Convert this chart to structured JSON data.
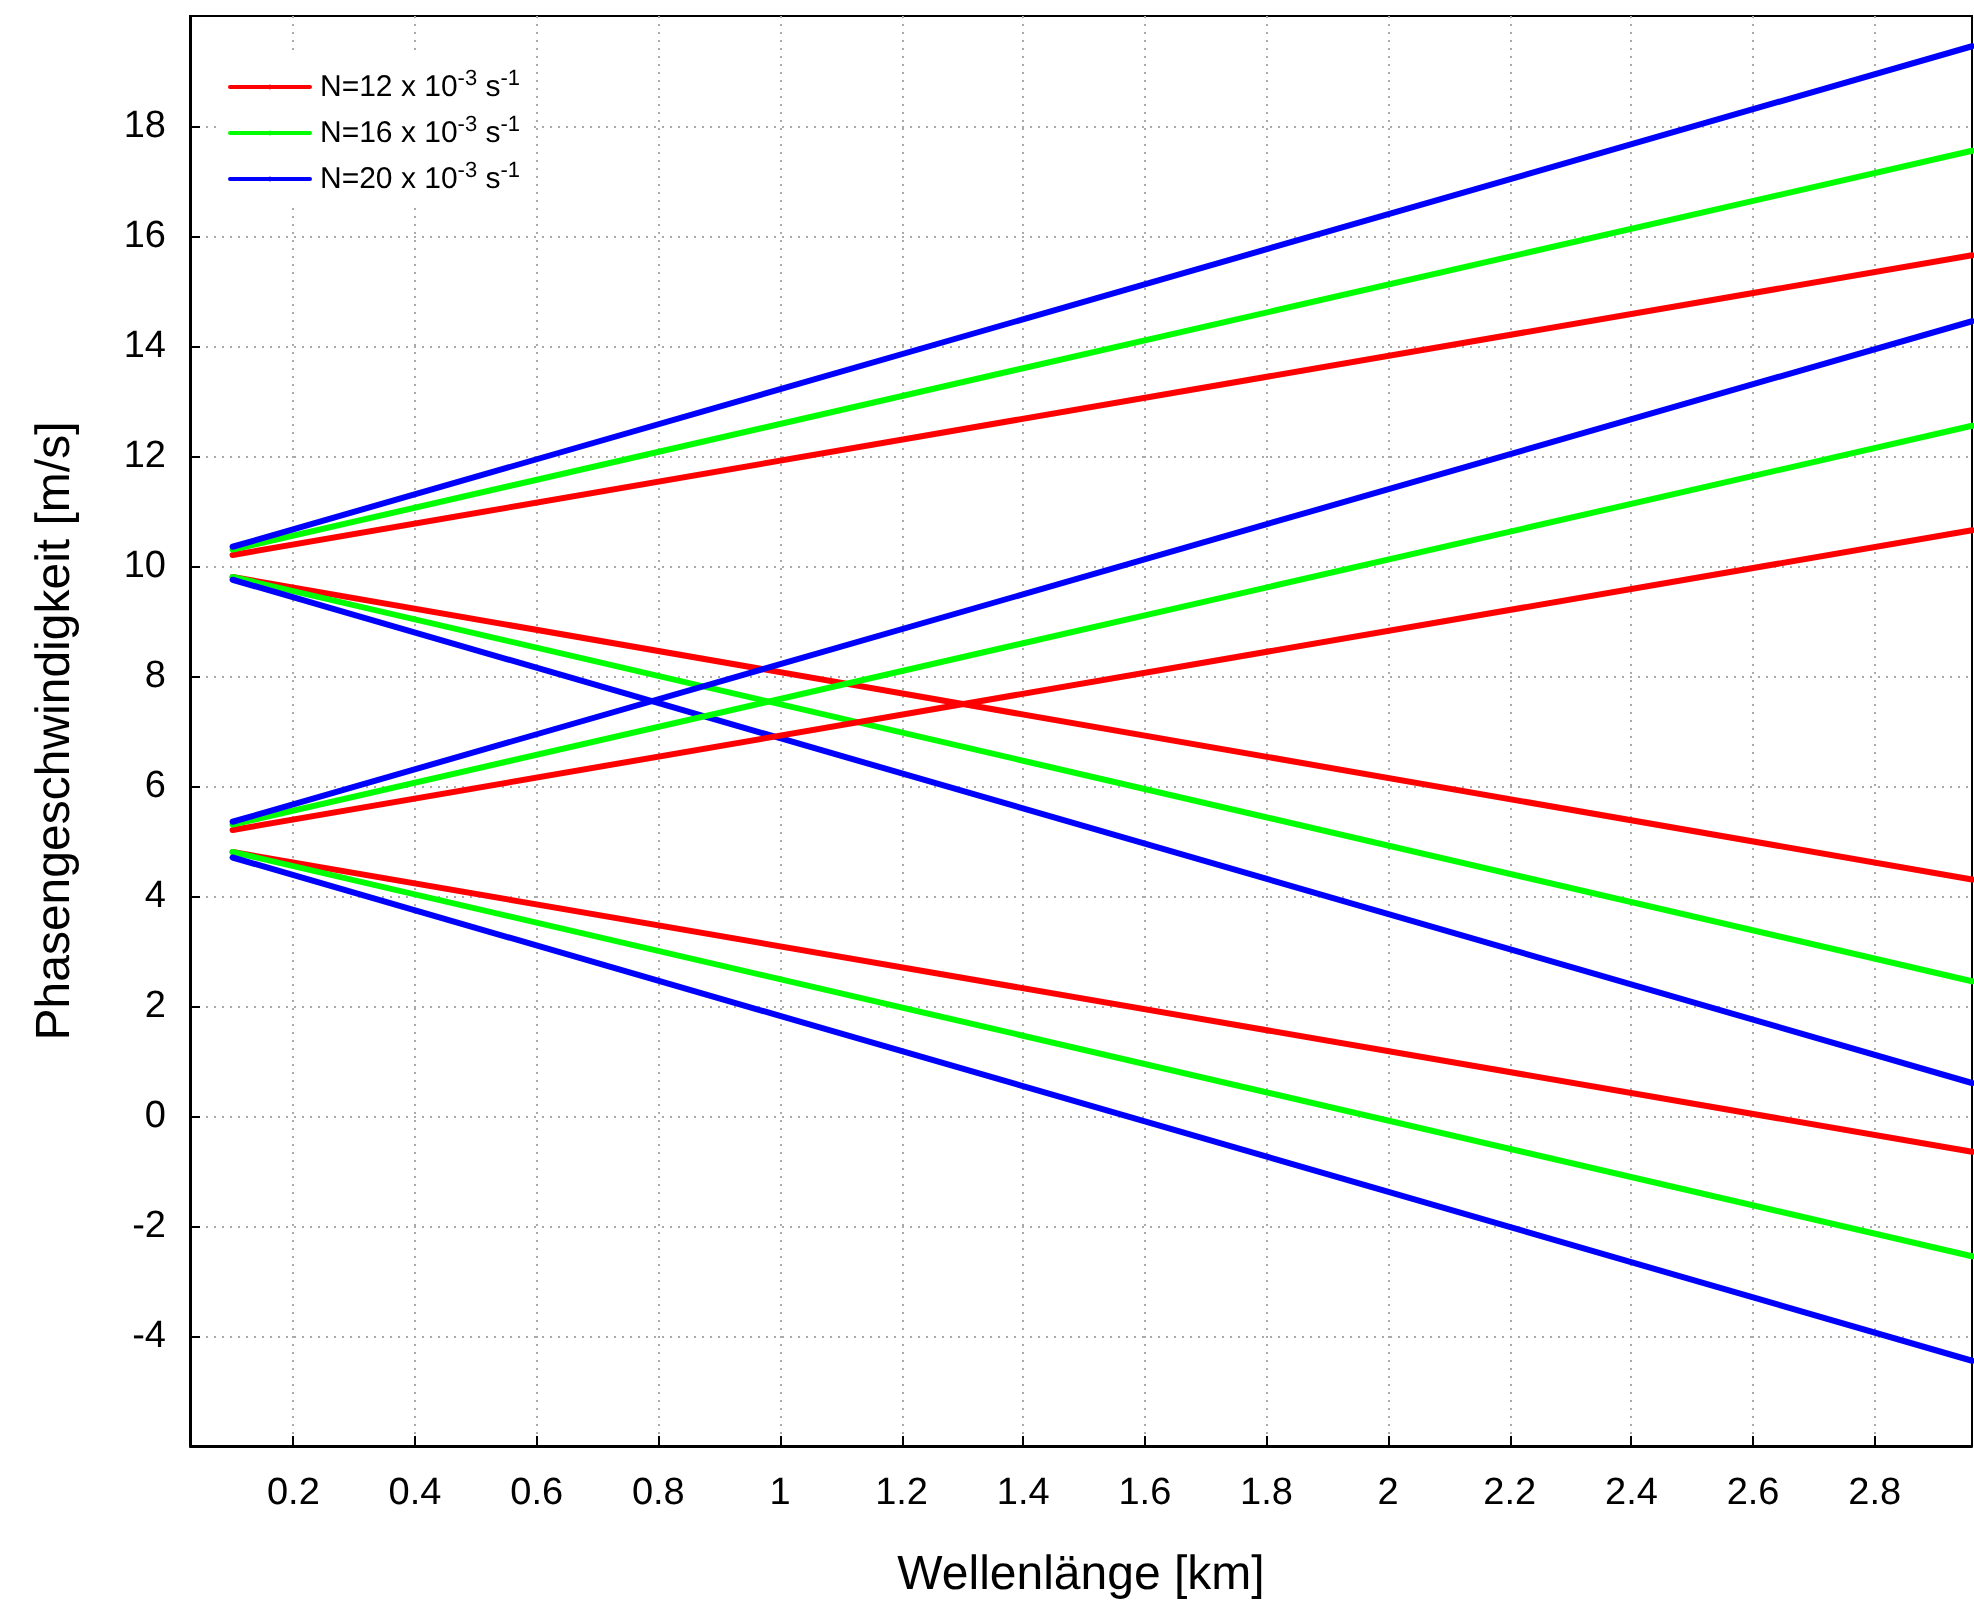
{
  "chart_data": {
    "type": "line",
    "xlabel": "Wellenlänge [km]",
    "ylabel": "Phasengeschwindigkeit [m/s]",
    "x": [
      0.1,
      2.96
    ],
    "xlim": [
      0.03,
      2.96
    ],
    "xticks": [
      0.2,
      0.4,
      0.6,
      0.8,
      1,
      1.2,
      1.4,
      1.6,
      1.8,
      2,
      2.2,
      2.4,
      2.6,
      2.8
    ],
    "ylim": [
      -6,
      20
    ],
    "yticks": [
      -4,
      -2,
      0,
      2,
      4,
      6,
      8,
      10,
      12,
      14,
      16,
      18
    ],
    "grid": true,
    "legend": "top left",
    "marker": "none",
    "line_style": "solid",
    "series": [
      {
        "name": "N=12 x 10$^{-3}$ s$^{-1}$",
        "color": "#ff0000",
        "values": [
          10.2,
          15.65
        ]
      },
      {
        "name": "N=16 x 10$^{-3}$ s$^{-1}$",
        "color": "#00ff00",
        "values": [
          10.3,
          17.55
        ]
      },
      {
        "name": "N=20 x 10$^{-3}$ s$^{-1}$",
        "color": "#0000ff",
        "values": [
          10.35,
          19.45
        ]
      },
      {
        "color": "#ff0000",
        "values": [
          9.8,
          4.3
        ]
      },
      {
        "color": "#00ff00",
        "values": [
          9.8,
          2.45
        ]
      },
      {
        "color": "#0000ff",
        "values": [
          9.75,
          0.6
        ]
      },
      {
        "color": "#ff0000",
        "values": [
          5.2,
          10.65
        ]
      },
      {
        "color": "#00ff00",
        "values": [
          5.3,
          12.55
        ]
      },
      {
        "color": "#0000ff",
        "values": [
          5.35,
          14.45
        ]
      },
      {
        "color": "#ff0000",
        "values": [
          4.8,
          -0.65
        ]
      },
      {
        "color": "#00ff00",
        "values": [
          4.8,
          -2.55
        ]
      },
      {
        "color": "#0000ff",
        "values": [
          4.7,
          -4.45
        ]
      }
    ]
  }
}
